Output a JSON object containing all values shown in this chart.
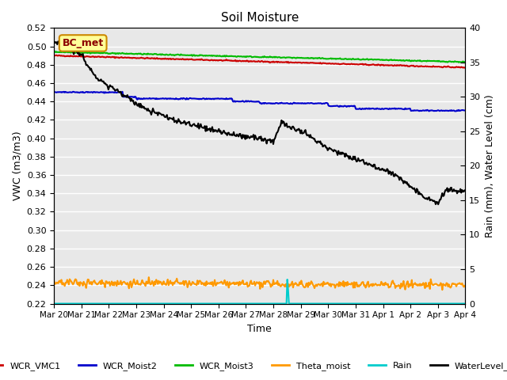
{
  "title": "Soil Moisture",
  "xlabel": "Time",
  "ylabel_left": "VWC (m3/m3)",
  "ylabel_right": "Rain (mm), Water Level (cm)",
  "annotation_text": "BC_met",
  "ylim_left": [
    0.22,
    0.52
  ],
  "ylim_right": [
    0,
    40
  ],
  "yticks_left": [
    0.22,
    0.24,
    0.26,
    0.28,
    0.3,
    0.32,
    0.34,
    0.36,
    0.38,
    0.4,
    0.42,
    0.44,
    0.46,
    0.48,
    0.5,
    0.52
  ],
  "yticks_right": [
    0,
    5,
    10,
    15,
    20,
    25,
    30,
    35,
    40
  ],
  "xtick_labels": [
    "Mar 20",
    "Mar 21",
    "Mar 22",
    "Mar 23",
    "Mar 24",
    "Mar 25",
    "Mar 26",
    "Mar 27",
    "Mar 28",
    "Mar 29",
    "Mar 30",
    "Mar 31",
    "Apr 1",
    "Apr 2",
    "Apr 3",
    "Apr 4"
  ],
  "background_color": "#e8e8e8",
  "colors": {
    "WCR_VMC1": "#cc0000",
    "WCR_Moist2": "#0000cc",
    "WCR_Moist3": "#00bb00",
    "Theta_moist": "#ff9900",
    "Rain": "#00cccc",
    "WaterLevel_cm": "#000000"
  },
  "linewidths": {
    "WCR_VMC1": 1.5,
    "WCR_Moist2": 1.5,
    "WCR_Moist3": 1.5,
    "Theta_moist": 1.5,
    "Rain": 1.5,
    "WaterLevel_cm": 1.5
  }
}
